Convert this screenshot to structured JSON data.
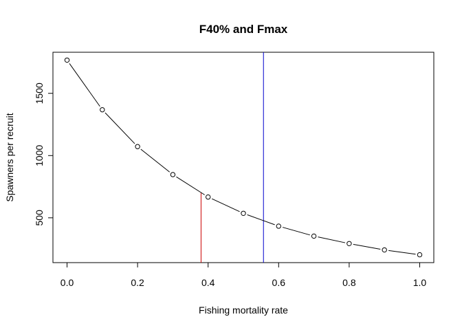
{
  "chart_data": {
    "type": "line",
    "title": "F40% and Fmax",
    "xlabel": "Fishing mortality rate",
    "ylabel": "Spawners per recruit",
    "xlim": [
      -0.04,
      1.04
    ],
    "ylim": [
      140,
      1830
    ],
    "x_ticks": [
      0.0,
      0.2,
      0.4,
      0.6,
      0.8,
      1.0
    ],
    "x_tick_labels": [
      "0.0",
      "0.2",
      "0.4",
      "0.6",
      "0.8",
      "1.0"
    ],
    "y_ticks": [
      500,
      1000,
      1500
    ],
    "y_tick_labels": [
      "500",
      "1000",
      "1500"
    ],
    "grid": false,
    "legend": "none",
    "series": [
      {
        "x": [
          0.0,
          0.1,
          0.2,
          0.3,
          0.4,
          0.5,
          0.6,
          0.7,
          0.8,
          0.9,
          1.0
        ],
        "values": [
          1767,
          1368,
          1072,
          847,
          667,
          536,
          433,
          353,
          293,
          242,
          203
        ],
        "color": "#000000",
        "marker": "open-circle"
      }
    ],
    "reference_lines": [
      {
        "x": 0.38,
        "y_top": 700,
        "y_bottom": "axis-min",
        "color": "#cc0000"
      },
      {
        "x": 0.557,
        "y_top": "axis-max",
        "y_bottom": "axis-min",
        "color": "#0000cc"
      }
    ]
  }
}
